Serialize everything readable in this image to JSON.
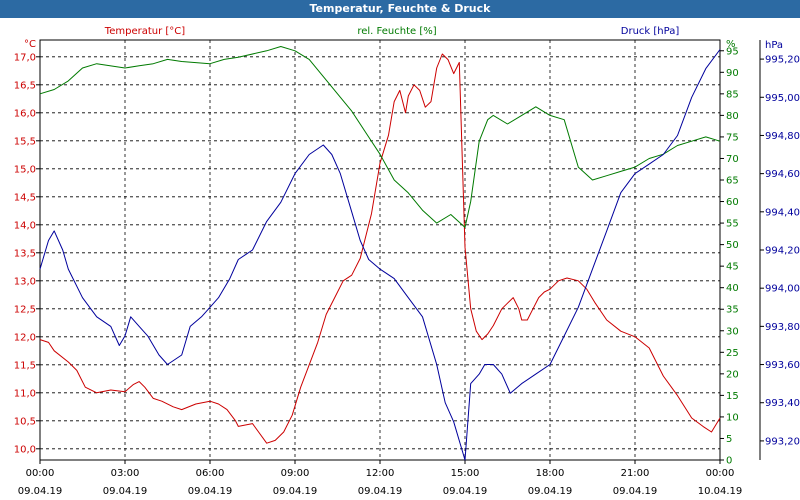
{
  "window": {
    "title": "Temperatur, Feuchte & Druck"
  },
  "colors": {
    "temp": "#cc0000",
    "hum": "#007a00",
    "press": "#00009c",
    "axis": "#000000",
    "grid": "#000000"
  },
  "chart_data": {
    "type": "line",
    "xlim": [
      0,
      24
    ],
    "x_ticks": [
      {
        "t": 0,
        "time": "00:00",
        "date": "09.04.19"
      },
      {
        "t": 3,
        "time": "03:00",
        "date": "09.04.19"
      },
      {
        "t": 6,
        "time": "06:00",
        "date": "09.04.19"
      },
      {
        "t": 9,
        "time": "09:00",
        "date": "09.04.19"
      },
      {
        "t": 12,
        "time": "12:00",
        "date": "09.04.19"
      },
      {
        "t": 15,
        "time": "15:00",
        "date": "09.04.19"
      },
      {
        "t": 18,
        "time": "18:00",
        "date": "09.04.19"
      },
      {
        "t": 21,
        "time": "21:00",
        "date": "09.04.19"
      },
      {
        "t": 24,
        "time": "00:00",
        "date": "10.04.19"
      }
    ],
    "axes": {
      "temp": {
        "unit": "°C",
        "legend": "Temperatur [°C]",
        "ylim": [
          9.8,
          17.3
        ],
        "ticks": [
          10.0,
          10.5,
          11.0,
          11.5,
          12.0,
          12.5,
          13.0,
          13.5,
          14.0,
          14.5,
          15.0,
          15.5,
          16.0,
          16.5,
          17.0
        ],
        "tick_labels": [
          "10,0",
          "10,5",
          "11,0",
          "11,5",
          "12,0",
          "12,5",
          "13,0",
          "13,5",
          "14,0",
          "14,5",
          "15,0",
          "15,5",
          "16,0",
          "16,5",
          "17,0"
        ]
      },
      "hum": {
        "unit": "%",
        "legend": "rel. Feuchte [%]",
        "ylim": [
          0,
          97.5
        ],
        "ticks": [
          0,
          5,
          10,
          15,
          20,
          25,
          30,
          35,
          40,
          45,
          50,
          55,
          60,
          65,
          70,
          75,
          80,
          85,
          90,
          95
        ],
        "tick_labels": [
          "0",
          "5",
          "10",
          "15",
          "20",
          "25",
          "30",
          "35",
          "40",
          "45",
          "50",
          "55",
          "60",
          "65",
          "70",
          "75",
          "80",
          "85",
          "90",
          "95"
        ]
      },
      "press": {
        "unit": "hPa",
        "legend": "Druck [hPa]",
        "ylim": [
          993.1,
          995.3
        ],
        "ticks": [
          993.2,
          993.4,
          993.6,
          993.8,
          994.0,
          994.2,
          994.4,
          994.6,
          994.8,
          995.0,
          995.2
        ],
        "tick_labels": [
          "993,20",
          "993,40",
          "993,60",
          "993,80",
          "994,00",
          "994,20",
          "994,40",
          "994,60",
          "994,80",
          "995,00",
          "995,20"
        ]
      }
    },
    "grid": true,
    "series": [
      {
        "name": "Temperatur [°C]",
        "axis": "temp",
        "points": [
          [
            0,
            11.95
          ],
          [
            0.3,
            11.9
          ],
          [
            0.5,
            11.75
          ],
          [
            1,
            11.55
          ],
          [
            1.3,
            11.4
          ],
          [
            1.6,
            11.1
          ],
          [
            2,
            11.0
          ],
          [
            2.5,
            11.05
          ],
          [
            3,
            11.02
          ],
          [
            3.3,
            11.15
          ],
          [
            3.5,
            11.2
          ],
          [
            3.7,
            11.1
          ],
          [
            4,
            10.9
          ],
          [
            4.3,
            10.85
          ],
          [
            4.7,
            10.75
          ],
          [
            5,
            10.7
          ],
          [
            5.5,
            10.8
          ],
          [
            6,
            10.85
          ],
          [
            6.3,
            10.8
          ],
          [
            6.6,
            10.7
          ],
          [
            6.9,
            10.5
          ],
          [
            7,
            10.4
          ],
          [
            7.5,
            10.45
          ],
          [
            8,
            10.1
          ],
          [
            8.3,
            10.15
          ],
          [
            8.6,
            10.3
          ],
          [
            8.9,
            10.6
          ],
          [
            9.2,
            11.1
          ],
          [
            9.5,
            11.5
          ],
          [
            9.8,
            11.9
          ],
          [
            10.1,
            12.4
          ],
          [
            10.4,
            12.7
          ],
          [
            10.7,
            13.0
          ],
          [
            11.0,
            13.1
          ],
          [
            11.3,
            13.4
          ],
          [
            11.7,
            14.2
          ],
          [
            12.0,
            15.1
          ],
          [
            12.3,
            15.6
          ],
          [
            12.5,
            16.2
          ],
          [
            12.7,
            16.4
          ],
          [
            12.9,
            16.0
          ],
          [
            13.0,
            16.3
          ],
          [
            13.2,
            16.5
          ],
          [
            13.4,
            16.4
          ],
          [
            13.6,
            16.1
          ],
          [
            13.8,
            16.2
          ],
          [
            14.0,
            16.8
          ],
          [
            14.2,
            17.05
          ],
          [
            14.4,
            16.95
          ],
          [
            14.6,
            16.7
          ],
          [
            14.8,
            16.9
          ],
          [
            15.0,
            13.6
          ],
          [
            15.2,
            12.5
          ],
          [
            15.4,
            12.1
          ],
          [
            15.6,
            11.95
          ],
          [
            15.8,
            12.05
          ],
          [
            16.0,
            12.2
          ],
          [
            16.3,
            12.5
          ],
          [
            16.5,
            12.6
          ],
          [
            16.7,
            12.7
          ],
          [
            16.9,
            12.5
          ],
          [
            17.0,
            12.3
          ],
          [
            17.2,
            12.3
          ],
          [
            17.4,
            12.5
          ],
          [
            17.6,
            12.7
          ],
          [
            17.8,
            12.8
          ],
          [
            18.0,
            12.85
          ],
          [
            18.3,
            13.0
          ],
          [
            18.6,
            13.05
          ],
          [
            19.0,
            13.0
          ],
          [
            19.3,
            12.85
          ],
          [
            19.6,
            12.6
          ],
          [
            20,
            12.3
          ],
          [
            20.5,
            12.1
          ],
          [
            21,
            12.0
          ],
          [
            21.5,
            11.8
          ],
          [
            22,
            11.3
          ],
          [
            22.5,
            10.95
          ],
          [
            23,
            10.55
          ],
          [
            23.4,
            10.4
          ],
          [
            23.7,
            10.3
          ],
          [
            24,
            10.55
          ]
        ]
      },
      {
        "name": "rel. Feuchte [%]",
        "axis": "hum",
        "points": [
          [
            0,
            85
          ],
          [
            0.5,
            86
          ],
          [
            1,
            88
          ],
          [
            1.5,
            91
          ],
          [
            2,
            92
          ],
          [
            3,
            91
          ],
          [
            3.5,
            91.5
          ],
          [
            4,
            92
          ],
          [
            4.5,
            93
          ],
          [
            5,
            92.5
          ],
          [
            6,
            92
          ],
          [
            6.5,
            93
          ],
          [
            7,
            93.5
          ],
          [
            8,
            95
          ],
          [
            8.5,
            96
          ],
          [
            9,
            95
          ],
          [
            9.5,
            93
          ],
          [
            10,
            89
          ],
          [
            10.5,
            85
          ],
          [
            11,
            81
          ],
          [
            11.5,
            76
          ],
          [
            12,
            71
          ],
          [
            12.5,
            65
          ],
          [
            13,
            62
          ],
          [
            13.5,
            58
          ],
          [
            14,
            55
          ],
          [
            14.5,
            57
          ],
          [
            15,
            54
          ],
          [
            15.2,
            60
          ],
          [
            15.5,
            74
          ],
          [
            15.8,
            79
          ],
          [
            16,
            80
          ],
          [
            16.5,
            78
          ],
          [
            17,
            80
          ],
          [
            17.5,
            82
          ],
          [
            18,
            80
          ],
          [
            18.5,
            79
          ],
          [
            19,
            68
          ],
          [
            19.5,
            65
          ],
          [
            20,
            66
          ],
          [
            20.5,
            67
          ],
          [
            21,
            68
          ],
          [
            21.5,
            70
          ],
          [
            22,
            71
          ],
          [
            22.5,
            73
          ],
          [
            23,
            74
          ],
          [
            23.5,
            75
          ],
          [
            24,
            74
          ]
        ]
      },
      {
        "name": "Druck [hPa]",
        "axis": "press",
        "points": [
          [
            0,
            994.1
          ],
          [
            0.3,
            994.25
          ],
          [
            0.5,
            994.3
          ],
          [
            0.8,
            994.2
          ],
          [
            1,
            994.1
          ],
          [
            1.5,
            993.95
          ],
          [
            2,
            993.85
          ],
          [
            2.5,
            993.8
          ],
          [
            2.8,
            993.7
          ],
          [
            3,
            993.75
          ],
          [
            3.2,
            993.85
          ],
          [
            3.5,
            993.8
          ],
          [
            3.8,
            993.75
          ],
          [
            4.2,
            993.65
          ],
          [
            4.5,
            993.6
          ],
          [
            5,
            993.65
          ],
          [
            5.3,
            993.8
          ],
          [
            5.7,
            993.85
          ],
          [
            6,
            993.9
          ],
          [
            6.3,
            993.95
          ],
          [
            6.7,
            994.05
          ],
          [
            7,
            994.15
          ],
          [
            7.5,
            994.2
          ],
          [
            8,
            994.35
          ],
          [
            8.5,
            994.45
          ],
          [
            9,
            994.6
          ],
          [
            9.5,
            994.7
          ],
          [
            10,
            994.75
          ],
          [
            10.3,
            994.7
          ],
          [
            10.6,
            994.6
          ],
          [
            11,
            994.4
          ],
          [
            11.3,
            994.25
          ],
          [
            11.6,
            994.15
          ],
          [
            12,
            994.1
          ],
          [
            12.5,
            994.05
          ],
          [
            13,
            993.95
          ],
          [
            13.5,
            993.85
          ],
          [
            14,
            993.6
          ],
          [
            14.3,
            993.4
          ],
          [
            14.6,
            993.3
          ],
          [
            15,
            993.1
          ],
          [
            15.2,
            993.5
          ],
          [
            15.5,
            993.55
          ],
          [
            15.7,
            993.6
          ],
          [
            16,
            993.6
          ],
          [
            16.3,
            993.55
          ],
          [
            16.6,
            993.45
          ],
          [
            17,
            993.5
          ],
          [
            17.5,
            993.55
          ],
          [
            18,
            993.6
          ],
          [
            18.5,
            993.75
          ],
          [
            19,
            993.9
          ],
          [
            19.5,
            994.1
          ],
          [
            20,
            994.3
          ],
          [
            20.5,
            994.5
          ],
          [
            21,
            994.6
          ],
          [
            21.5,
            994.65
          ],
          [
            22,
            994.7
          ],
          [
            22.5,
            994.8
          ],
          [
            23,
            995.0
          ],
          [
            23.5,
            995.15
          ],
          [
            24,
            995.25
          ]
        ]
      }
    ]
  }
}
